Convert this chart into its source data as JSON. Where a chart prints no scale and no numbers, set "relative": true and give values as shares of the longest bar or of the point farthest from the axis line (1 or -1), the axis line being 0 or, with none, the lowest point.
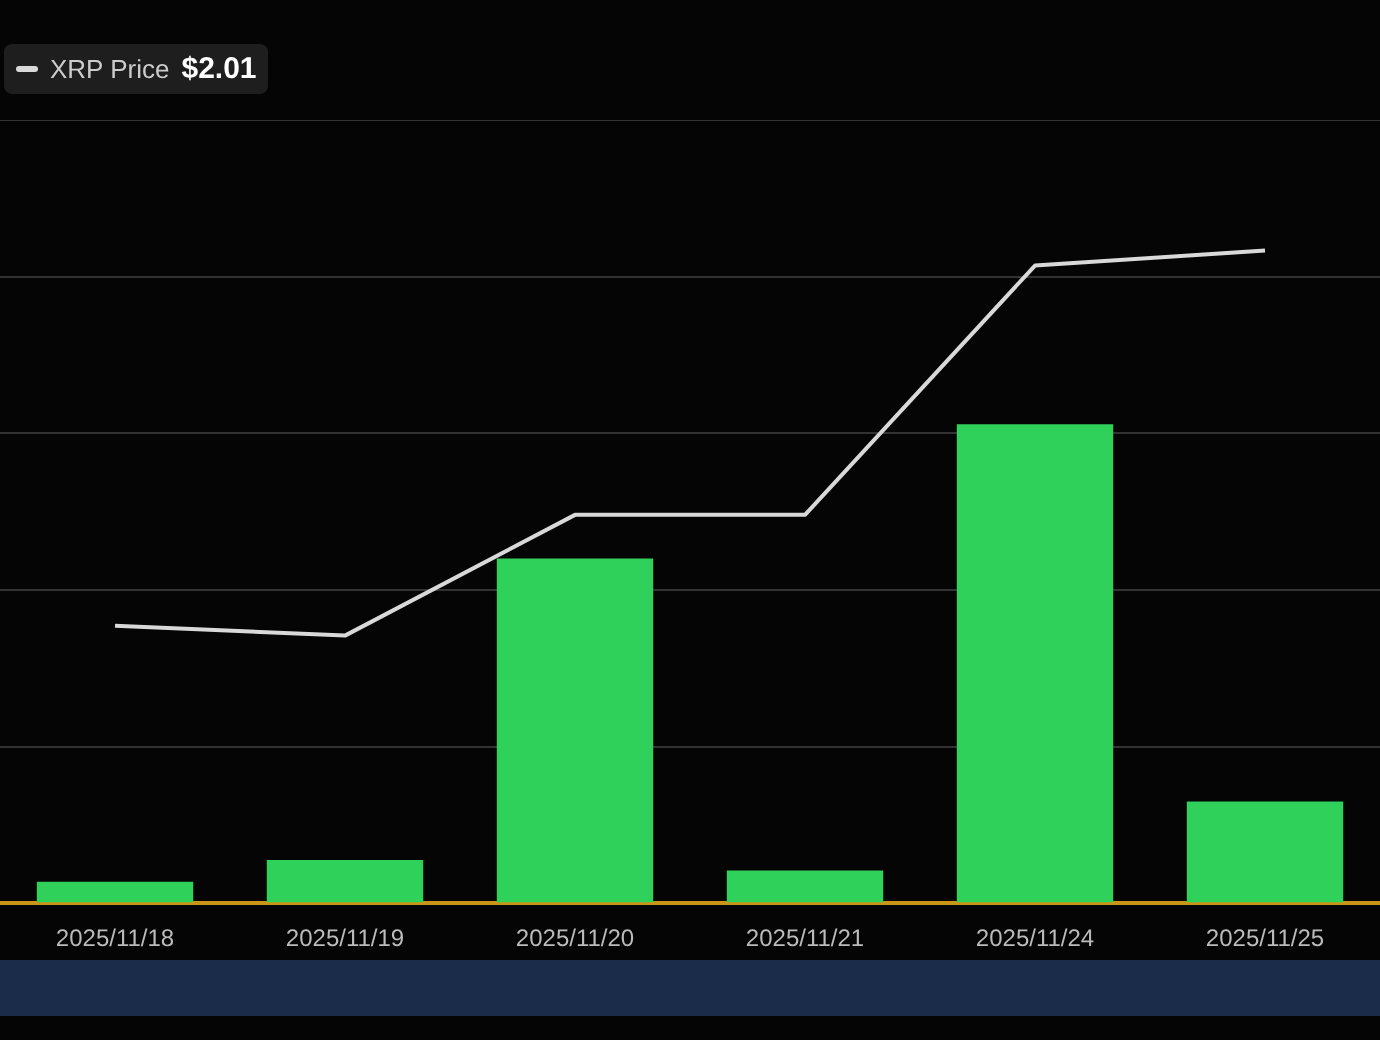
{
  "chart_data": {
    "type": "bar",
    "relative": true,
    "categories": [
      "2025/11/18",
      "2025/11/19",
      "2025/11/20",
      "2025/11/21",
      "2025/11/24",
      "2025/11/25"
    ],
    "series": [
      {
        "color": "#2fd15a",
        "values": [
          0.033,
          0.066,
          0.528,
          0.05,
          0.734,
          0.156
        ]
      },
      {
        "type": "line",
        "name": "XRP Price",
        "color": "#d9d9d9",
        "values": [
          0.425,
          0.41,
          0.595,
          0.595,
          0.977,
          1
        ]
      }
    ],
    "annotations": [
      "$2.01"
    ],
    "grid": "y",
    "legend": "top left",
    "marker": "none"
  }
}
